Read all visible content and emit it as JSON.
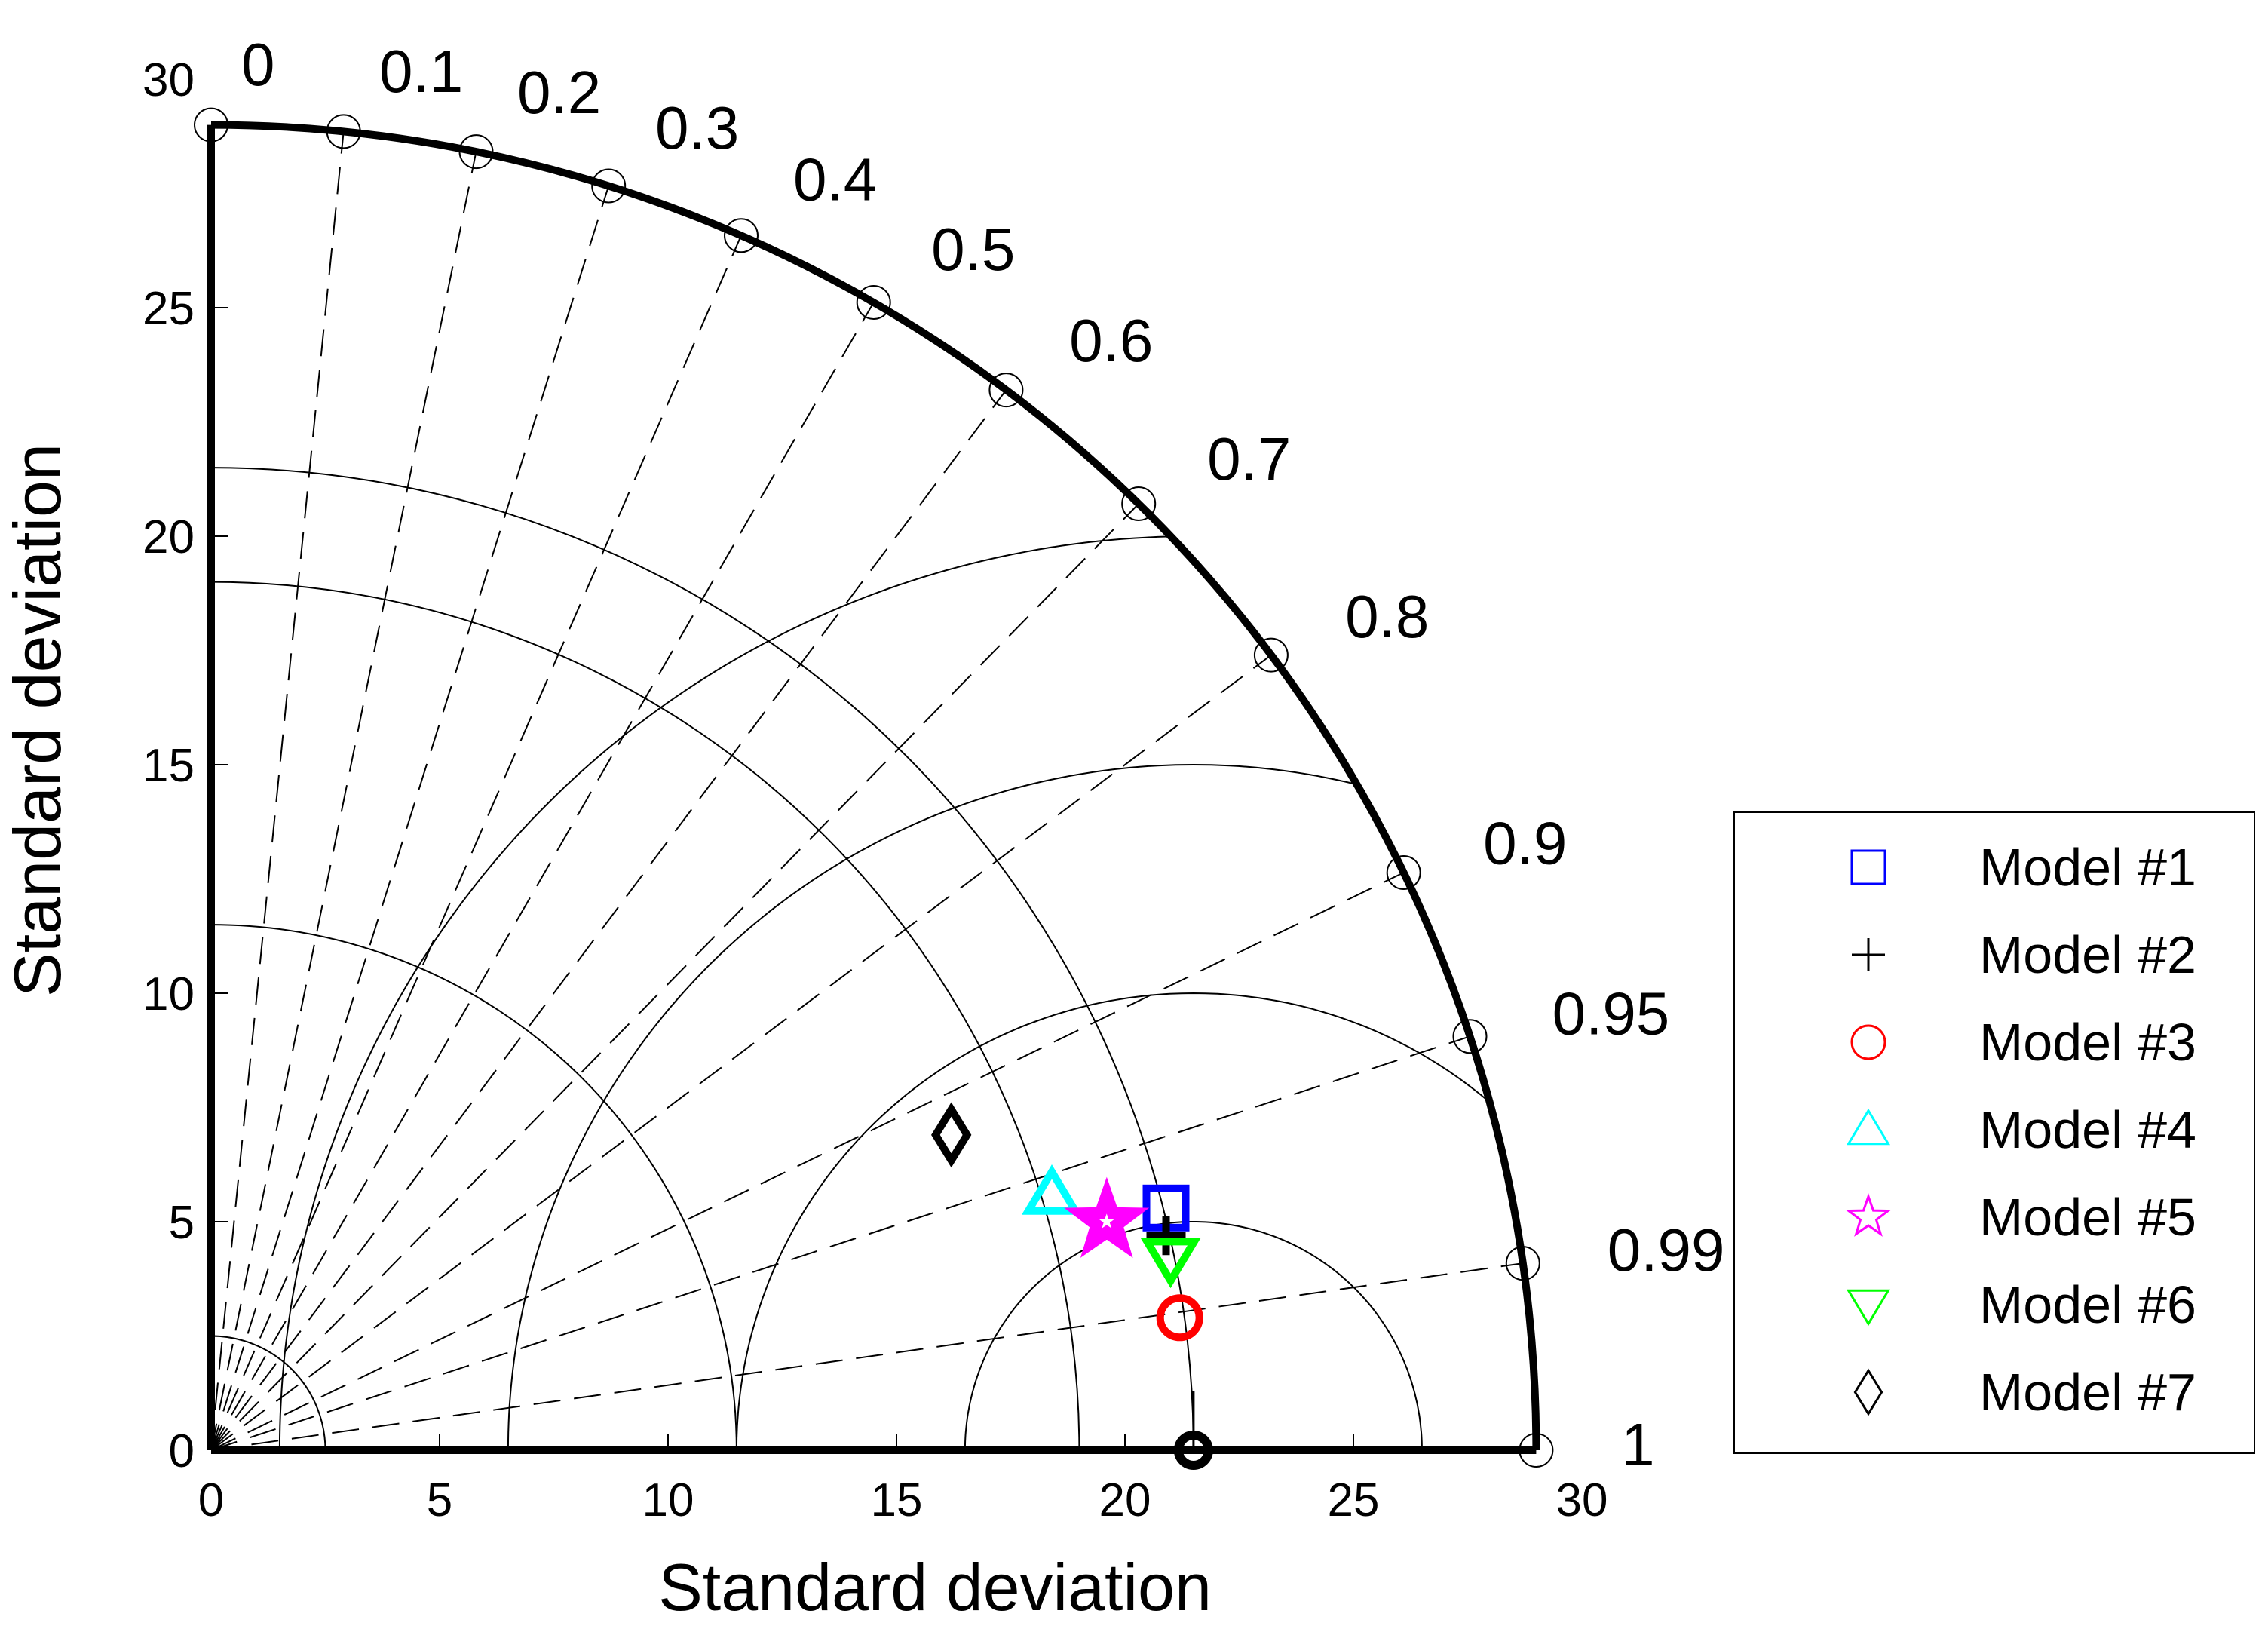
{
  "chart_data": {
    "type": "scatter",
    "subtype": "taylor-diagram",
    "xlabel": "Standard deviation",
    "ylabel": "Standard deviation",
    "xlim": [
      0,
      30
    ],
    "ylim": [
      0,
      30
    ],
    "x_ticks": [
      "0",
      "5",
      "10",
      "15",
      "20",
      "25",
      "30"
    ],
    "y_ticks": [
      "0",
      "5",
      "10",
      "15",
      "20",
      "25",
      "30"
    ],
    "grid": true,
    "legend_position": "right",
    "outer_std": 29,
    "reference": {
      "std": 21.5
    },
    "correlation_ticks": [
      "0",
      "0.1",
      "0.2",
      "0.3",
      "0.4",
      "0.5",
      "0.6",
      "0.7",
      "0.8",
      "0.9",
      "0.95",
      "0.99",
      "1"
    ],
    "rms_contours": [
      5,
      10,
      15,
      20
    ],
    "series": [
      {
        "name": "Model #1",
        "marker": "square",
        "color": "#0000ff",
        "x": 20.9,
        "y": 5.3
      },
      {
        "name": "Model #2",
        "marker": "plus",
        "color": "#000000",
        "x": 20.9,
        "y": 4.7
      },
      {
        "name": "Model #3",
        "marker": "circle",
        "color": "#ff0000",
        "x": 21.2,
        "y": 2.9
      },
      {
        "name": "Model #4",
        "marker": "triangle-up",
        "color": "#00ffff",
        "x": 18.4,
        "y": 5.6
      },
      {
        "name": "Model #5",
        "marker": "star",
        "color": "#ff00ff",
        "x": 19.6,
        "y": 5.0
      },
      {
        "name": "Model #6",
        "marker": "triangle-down",
        "color": "#00ff00",
        "x": 21.0,
        "y": 4.2
      },
      {
        "name": "Model #7",
        "marker": "diamond",
        "color": "#000000",
        "x": 16.2,
        "y": 6.9
      }
    ]
  }
}
